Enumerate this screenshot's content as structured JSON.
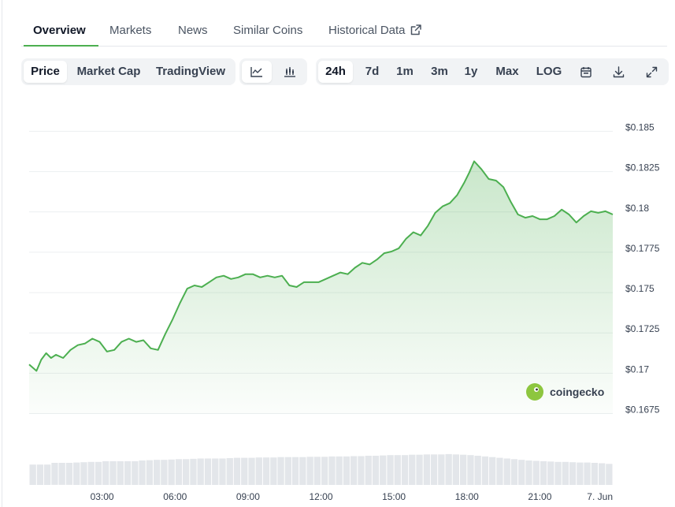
{
  "tabs": [
    {
      "label": "Overview",
      "active": true
    },
    {
      "label": "Markets"
    },
    {
      "label": "News"
    },
    {
      "label": "Similar Coins"
    },
    {
      "label": "Historical Data",
      "icon": "external-link-icon"
    }
  ],
  "chart_type_group": {
    "items": [
      {
        "label": "Price",
        "active": true
      },
      {
        "label": "Market Cap"
      },
      {
        "label": "TradingView"
      }
    ]
  },
  "style_group": {
    "items": [
      {
        "icon": "line-chart-icon",
        "active": true
      },
      {
        "icon": "candlestick-chart-icon"
      }
    ]
  },
  "range_group": {
    "items": [
      {
        "label": "24h",
        "active": true
      },
      {
        "label": "7d"
      },
      {
        "label": "1m"
      },
      {
        "label": "3m"
      },
      {
        "label": "1y"
      },
      {
        "label": "Max"
      },
      {
        "label": "LOG"
      }
    ],
    "icons": [
      "calendar-icon",
      "download-icon",
      "fullscreen-icon"
    ]
  },
  "watermark": {
    "text": "coingecko",
    "icon": "coingecko-logo-icon"
  },
  "colors": {
    "line": "#4caf50",
    "accent": "#4caf50",
    "area_top": "#c8e6c9"
  },
  "chart_data": {
    "type": "area",
    "y_axis_position": "right",
    "ylim": [
      0.1665,
      0.1855
    ],
    "y_ticks": [
      0.1675,
      0.17,
      0.1725,
      0.175,
      0.1775,
      0.18,
      0.1825,
      0.185
    ],
    "y_tick_labels": [
      "$0.1675",
      "$0.17",
      "$0.1725",
      "$0.175",
      "$0.1775",
      "$0.18",
      "$0.1825",
      "$0.185"
    ],
    "x_range_hours": [
      0,
      24
    ],
    "x_ticks": [
      3,
      6,
      9,
      12,
      15,
      18,
      21,
      24
    ],
    "x_tick_labels": [
      "03:00",
      "06:00",
      "09:00",
      "12:00",
      "15:00",
      "18:00",
      "21:00",
      "7. Jun"
    ],
    "grid": true,
    "series": [
      {
        "x": [
          0.0,
          0.15,
          0.3,
          0.5,
          0.7,
          0.9,
          1.1,
          1.4,
          1.7,
          2.0,
          2.3,
          2.6,
          2.9,
          3.2,
          3.5,
          3.8,
          4.1,
          4.4,
          4.7,
          5.0,
          5.3,
          5.6,
          5.9,
          6.2,
          6.5,
          6.8,
          7.1,
          7.4,
          7.7,
          8.0,
          8.3,
          8.6,
          8.9,
          9.2,
          9.5,
          9.8,
          10.1,
          10.4,
          10.7,
          11.0,
          11.3,
          11.6,
          11.9,
          12.2,
          12.5,
          12.8,
          13.1,
          13.4,
          13.7,
          14.0,
          14.3,
          14.6,
          14.9,
          15.2,
          15.5,
          15.8,
          16.1,
          16.4,
          16.7,
          17.0,
          17.3,
          17.6,
          17.9,
          18.1,
          18.3,
          18.6,
          18.9,
          19.2,
          19.5,
          19.8,
          20.1,
          20.4,
          20.7,
          21.0,
          21.3,
          21.6,
          21.9,
          22.2,
          22.5,
          22.8,
          23.1,
          23.4,
          23.7,
          24.0
        ],
        "y": [
          0.1703,
          0.1701,
          0.1699,
          0.1706,
          0.171,
          0.1707,
          0.1709,
          0.1707,
          0.1712,
          0.1715,
          0.1716,
          0.1719,
          0.1717,
          0.1711,
          0.1712,
          0.1717,
          0.1719,
          0.1717,
          0.1718,
          0.1713,
          0.1712,
          0.1722,
          0.1731,
          0.1741,
          0.175,
          0.1752,
          0.1751,
          0.1754,
          0.1757,
          0.1758,
          0.1756,
          0.1757,
          0.1759,
          0.1759,
          0.1757,
          0.1758,
          0.1757,
          0.1758,
          0.1752,
          0.1751,
          0.1754,
          0.1754,
          0.1754,
          0.1756,
          0.1758,
          0.176,
          0.1759,
          0.1763,
          0.1766,
          0.1765,
          0.1768,
          0.1772,
          0.1773,
          0.1775,
          0.1781,
          0.1785,
          0.1783,
          0.1789,
          0.1797,
          0.1801,
          0.1803,
          0.1808,
          0.1816,
          0.1822,
          0.1829,
          0.1824,
          0.1818,
          0.1817,
          0.1813,
          0.1804,
          0.1796,
          0.1794,
          0.1795,
          0.1793,
          0.1793,
          0.1795,
          0.1799,
          0.1796,
          0.1791,
          0.1795,
          0.1798,
          0.1797,
          0.1798,
          0.1796
        ]
      }
    ],
    "volume": [
      6,
      6,
      6,
      6.5,
      6.5,
      6.5,
      6.6,
      6.7,
      6.8,
      6.8,
      7,
      7,
      7,
      7,
      7,
      7.2,
      7.3,
      7.4,
      7.4,
      7.5,
      7.6,
      7.6,
      7.7,
      7.8,
      7.8,
      7.8,
      7.8,
      7.9,
      8,
      8,
      8,
      8.1,
      8.1,
      8.1,
      8.2,
      8.2,
      8.2,
      8.2,
      8.3,
      8.3,
      8.3,
      8.4,
      8.4,
      8.4,
      8.5,
      8.5,
      8.6,
      8.6,
      8.7,
      8.8,
      8.8,
      8.8,
      8.9,
      8.9,
      9,
      9,
      9,
      9.1,
      9,
      8.9,
      8.8,
      8.6,
      8.4,
      8.2,
      8,
      7.8,
      7.6,
      7.4,
      7.2,
      7.1,
      7,
      6.9,
      6.8,
      6.8,
      6.7,
      6.6,
      6.6,
      6.5,
      6.4,
      6.2
    ]
  }
}
